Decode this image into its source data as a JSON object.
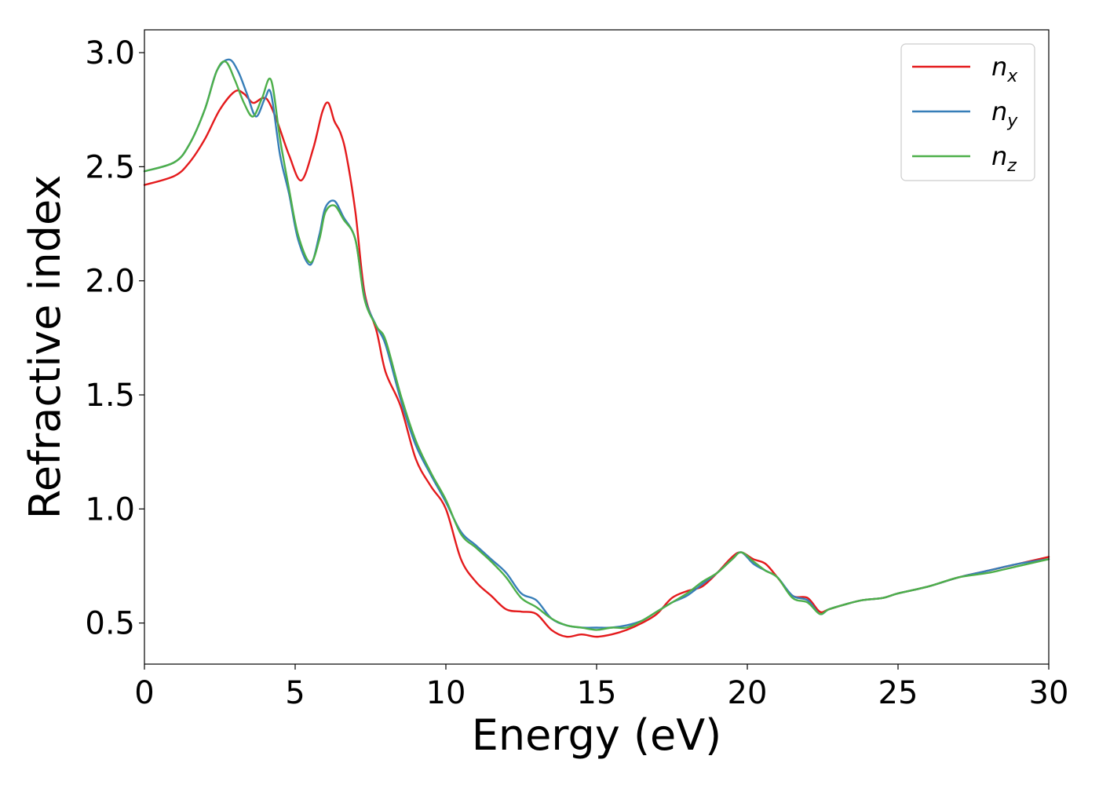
{
  "chart_data": {
    "type": "line",
    "xlabel": "Energy (eV)",
    "ylabel": "Refractive index",
    "xlim": [
      0,
      30
    ],
    "ylim": [
      0.32,
      3.1
    ],
    "xticks": [
      0,
      5,
      10,
      15,
      20,
      25,
      30
    ],
    "xtick_labels": [
      "0",
      "5",
      "10",
      "15",
      "20",
      "25",
      "30"
    ],
    "yticks": [
      0.5,
      1.0,
      1.5,
      2.0,
      2.5,
      3.0
    ],
    "ytick_labels": [
      "0.5",
      "1.0",
      "1.5",
      "2.0",
      "2.5",
      "3.0"
    ],
    "grid": false,
    "legend_position": "top-right",
    "series": [
      {
        "name": "n_x",
        "label_base": "n",
        "label_sub": "x",
        "color": "#e41a1c",
        "x": [
          0,
          1,
          1.5,
          2,
          2.5,
          3,
          3.3,
          3.6,
          3.9,
          4.1,
          4.4,
          4.8,
          5.2,
          5.6,
          5.9,
          6.1,
          6.3,
          6.5,
          6.7,
          7.0,
          7.3,
          7.7,
          8.0,
          8.5,
          9.0,
          9.5,
          10.0,
          10.5,
          11.0,
          11.5,
          12.0,
          12.5,
          13.0,
          13.5,
          14.0,
          14.5,
          15.0,
          15.5,
          16.0,
          16.5,
          17.0,
          17.5,
          18.0,
          18.5,
          19.0,
          19.5,
          19.8,
          20.2,
          20.6,
          21.0,
          21.5,
          22.0,
          22.4,
          22.7,
          23.2,
          23.8,
          24.5,
          25.0,
          26.0,
          27.0,
          28.0,
          29.0,
          30.0
        ],
        "y": [
          2.42,
          2.46,
          2.52,
          2.62,
          2.75,
          2.83,
          2.82,
          2.78,
          2.8,
          2.79,
          2.7,
          2.55,
          2.44,
          2.58,
          2.74,
          2.78,
          2.7,
          2.65,
          2.55,
          2.3,
          1.95,
          1.78,
          1.6,
          1.45,
          1.22,
          1.1,
          1.0,
          0.78,
          0.68,
          0.62,
          0.56,
          0.55,
          0.54,
          0.47,
          0.44,
          0.45,
          0.44,
          0.45,
          0.47,
          0.5,
          0.54,
          0.61,
          0.64,
          0.66,
          0.72,
          0.79,
          0.81,
          0.78,
          0.76,
          0.7,
          0.62,
          0.61,
          0.55,
          0.56,
          0.58,
          0.6,
          0.61,
          0.63,
          0.66,
          0.7,
          0.73,
          0.76,
          0.79
        ]
      },
      {
        "name": "n_y",
        "label_base": "n",
        "label_sub": "y",
        "color": "#377eb8",
        "x": [
          0,
          1,
          1.5,
          2,
          2.4,
          2.8,
          3.1,
          3.4,
          3.7,
          4.0,
          4.2,
          4.5,
          4.8,
          5.1,
          5.5,
          5.8,
          6.0,
          6.3,
          6.6,
          7.0,
          7.3,
          7.7,
          8.0,
          8.5,
          9.0,
          9.5,
          10.0,
          10.5,
          11.0,
          11.5,
          12.0,
          12.5,
          13.0,
          13.5,
          14.0,
          14.5,
          15.0,
          15.5,
          16.0,
          16.5,
          17.0,
          17.5,
          18.0,
          18.5,
          19.0,
          19.5,
          19.8,
          20.2,
          20.6,
          21.0,
          21.5,
          22.0,
          22.4,
          22.7,
          23.2,
          23.8,
          24.5,
          25.0,
          26.0,
          27.0,
          28.0,
          29.0,
          30.0
        ],
        "y": [
          2.48,
          2.52,
          2.6,
          2.75,
          2.92,
          2.97,
          2.92,
          2.82,
          2.72,
          2.8,
          2.82,
          2.55,
          2.38,
          2.18,
          2.07,
          2.2,
          2.32,
          2.35,
          2.28,
          2.18,
          1.93,
          1.8,
          1.72,
          1.48,
          1.28,
          1.15,
          1.03,
          0.9,
          0.84,
          0.78,
          0.72,
          0.63,
          0.6,
          0.52,
          0.49,
          0.48,
          0.48,
          0.48,
          0.49,
          0.51,
          0.55,
          0.59,
          0.62,
          0.67,
          0.72,
          0.78,
          0.81,
          0.76,
          0.73,
          0.7,
          0.62,
          0.6,
          0.54,
          0.56,
          0.58,
          0.6,
          0.61,
          0.63,
          0.66,
          0.7,
          0.73,
          0.76,
          0.78
        ]
      },
      {
        "name": "n_z",
        "label_base": "n",
        "label_sub": "z",
        "color": "#4daf4a",
        "x": [
          0,
          1,
          1.5,
          2,
          2.4,
          2.7,
          3.0,
          3.3,
          3.6,
          3.9,
          4.2,
          4.5,
          4.8,
          5.1,
          5.5,
          5.8,
          6.0,
          6.3,
          6.6,
          7.0,
          7.3,
          7.7,
          8.0,
          8.5,
          9.0,
          9.5,
          10.0,
          10.5,
          11.0,
          11.5,
          12.0,
          12.5,
          13.0,
          13.5,
          14.0,
          14.5,
          15.0,
          15.5,
          16.0,
          16.5,
          17.0,
          17.5,
          18.0,
          18.5,
          19.0,
          19.5,
          19.8,
          20.2,
          20.6,
          21.0,
          21.5,
          22.0,
          22.4,
          22.7,
          23.2,
          23.8,
          24.5,
          25.0,
          26.0,
          27.0,
          28.0,
          29.0,
          30.0
        ],
        "y": [
          2.48,
          2.52,
          2.6,
          2.75,
          2.92,
          2.96,
          2.88,
          2.78,
          2.72,
          2.8,
          2.88,
          2.62,
          2.4,
          2.2,
          2.08,
          2.18,
          2.3,
          2.33,
          2.27,
          2.18,
          1.92,
          1.8,
          1.74,
          1.5,
          1.3,
          1.16,
          1.04,
          0.89,
          0.83,
          0.77,
          0.7,
          0.61,
          0.57,
          0.52,
          0.49,
          0.48,
          0.47,
          0.48,
          0.48,
          0.51,
          0.55,
          0.59,
          0.63,
          0.68,
          0.72,
          0.78,
          0.81,
          0.77,
          0.73,
          0.7,
          0.61,
          0.59,
          0.54,
          0.56,
          0.58,
          0.6,
          0.61,
          0.63,
          0.66,
          0.7,
          0.72,
          0.75,
          0.78
        ]
      }
    ]
  }
}
